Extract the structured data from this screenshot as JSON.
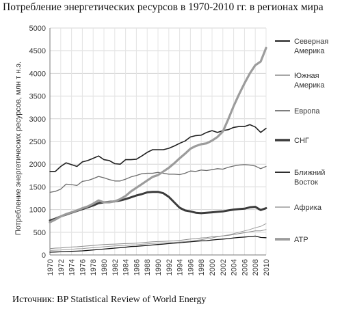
{
  "title": "Потребление энергетических ресурсов в 1970-2010 гг. в регионах мира",
  "source": "Источник: BP Statistical Review of World Energy",
  "chart_data": {
    "type": "line",
    "title": "Потребление энергетических ресурсов в 1970-2010 гг. в регионах мира",
    "ylabel": "Потребление энергетических ресурсов, млн т н.э.",
    "xlabel": "",
    "ylim": [
      0,
      5000
    ],
    "yticks": [
      0,
      500,
      1000,
      1500,
      2000,
      2500,
      3000,
      3500,
      4000,
      4500,
      5000
    ],
    "xticks": [
      "1970",
      "1972",
      "1974",
      "1976",
      "1978",
      "1980",
      "1982",
      "1984",
      "1986",
      "1988",
      "1990",
      "1992",
      "1994",
      "1996",
      "1998",
      "2000",
      "2002",
      "2004",
      "2006",
      "2008",
      "2010"
    ],
    "grid": true,
    "legend_position": "right",
    "x": [
      1970,
      1971,
      1972,
      1973,
      1974,
      1975,
      1976,
      1977,
      1978,
      1979,
      1980,
      1981,
      1982,
      1983,
      1984,
      1985,
      1986,
      1987,
      1988,
      1989,
      1990,
      1991,
      1992,
      1993,
      1994,
      1995,
      1996,
      1997,
      1998,
      1999,
      2000,
      2001,
      2002,
      2003,
      2004,
      2005,
      2006,
      2007,
      2008,
      2009,
      2010
    ],
    "series": [
      {
        "name": "Северная Америка",
        "color": "#1f1f1f",
        "width": 1.6,
        "values": [
          1840,
          1840,
          1950,
          2030,
          1990,
          1950,
          2050,
          2080,
          2130,
          2180,
          2100,
          2080,
          2010,
          2000,
          2100,
          2100,
          2110,
          2180,
          2260,
          2320,
          2320,
          2320,
          2350,
          2400,
          2460,
          2510,
          2600,
          2630,
          2640,
          2700,
          2740,
          2700,
          2740,
          2760,
          2810,
          2830,
          2830,
          2870,
          2820,
          2700,
          2790
        ]
      },
      {
        "name": "Южная Америка",
        "color": "#8a8a8a",
        "width": 1.0,
        "values": [
          140,
          150,
          155,
          165,
          175,
          180,
          190,
          200,
          210,
          220,
          230,
          235,
          240,
          245,
          250,
          255,
          260,
          270,
          280,
          290,
          295,
          300,
          305,
          310,
          320,
          335,
          350,
          360,
          375,
          380,
          400,
          410,
          420,
          430,
          450,
          470,
          490,
          510,
          530,
          530,
          560
        ]
      },
      {
        "name": "Европа",
        "color": "#6b6b6b",
        "width": 1.3,
        "values": [
          1380,
          1400,
          1450,
          1560,
          1550,
          1530,
          1620,
          1640,
          1680,
          1730,
          1700,
          1660,
          1630,
          1630,
          1670,
          1720,
          1750,
          1790,
          1800,
          1800,
          1820,
          1800,
          1780,
          1780,
          1770,
          1800,
          1850,
          1840,
          1870,
          1860,
          1880,
          1900,
          1890,
          1930,
          1960,
          1980,
          1990,
          1980,
          1960,
          1900,
          1950
        ]
      },
      {
        "name": "СНГ",
        "color": "#3c3c3c",
        "width": 3.0,
        "values": [
          760,
          800,
          850,
          890,
          930,
          970,
          1010,
          1050,
          1090,
          1140,
          1160,
          1170,
          1180,
          1200,
          1230,
          1270,
          1310,
          1340,
          1380,
          1390,
          1390,
          1360,
          1280,
          1160,
          1040,
          980,
          960,
          930,
          920,
          930,
          940,
          950,
          960,
          980,
          1000,
          1010,
          1020,
          1050,
          1060,
          990,
          1030
        ]
      },
      {
        "name": "Ближний Восток",
        "color": "#111111",
        "width": 1.3,
        "values": [
          60,
          65,
          70,
          75,
          80,
          85,
          90,
          100,
          110,
          120,
          130,
          140,
          150,
          160,
          170,
          185,
          190,
          200,
          210,
          220,
          230,
          240,
          250,
          260,
          270,
          280,
          290,
          300,
          310,
          315,
          330,
          340,
          350,
          360,
          375,
          385,
          395,
          405,
          415,
          385,
          380
        ]
      },
      {
        "name": "Африка",
        "color": "#9a9a9a",
        "width": 1.0,
        "values": [
          100,
          105,
          110,
          120,
          125,
          135,
          140,
          150,
          160,
          170,
          180,
          190,
          200,
          205,
          210,
          220,
          225,
          235,
          245,
          255,
          260,
          265,
          270,
          275,
          285,
          295,
          305,
          320,
          335,
          355,
          375,
          400,
          420,
          440,
          470,
          500,
          530,
          560,
          600,
          630,
          690
        ]
      },
      {
        "name": "АТР",
        "color": "#9c9c9c",
        "width": 3.2,
        "values": [
          720,
          780,
          850,
          900,
          940,
          980,
          1030,
          1070,
          1130,
          1200,
          1160,
          1160,
          1180,
          1230,
          1300,
          1400,
          1480,
          1560,
          1640,
          1720,
          1760,
          1840,
          1920,
          2020,
          2130,
          2230,
          2340,
          2400,
          2440,
          2460,
          2520,
          2600,
          2720,
          2990,
          3280,
          3540,
          3780,
          4000,
          4180,
          4260,
          4560
        ]
      }
    ]
  }
}
